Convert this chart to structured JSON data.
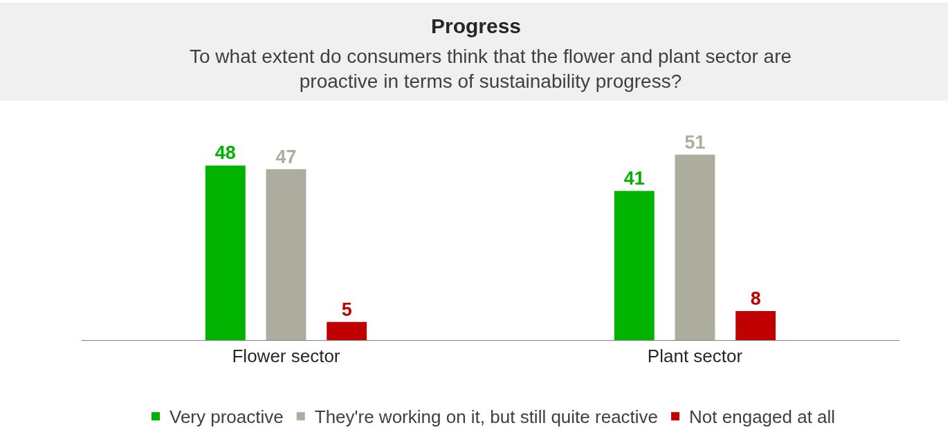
{
  "chart_data": {
    "type": "bar",
    "title": "Progress",
    "subtitle": "To what extent do consumers think that the flower and plant sector are proactive in terms of sustainability progress?",
    "categories": [
      "Flower sector",
      "Plant sector"
    ],
    "series": [
      {
        "name": "Very proactive",
        "color": "#00b300",
        "values": [
          48,
          41
        ]
      },
      {
        "name": "They're working on it, but still quite reactive",
        "color": "#adad9f",
        "values": [
          47,
          51
        ]
      },
      {
        "name": "Not engaged at all",
        "color": "#c00000",
        "values": [
          5,
          8
        ]
      }
    ],
    "data_labels": true,
    "legend": "bottom"
  }
}
